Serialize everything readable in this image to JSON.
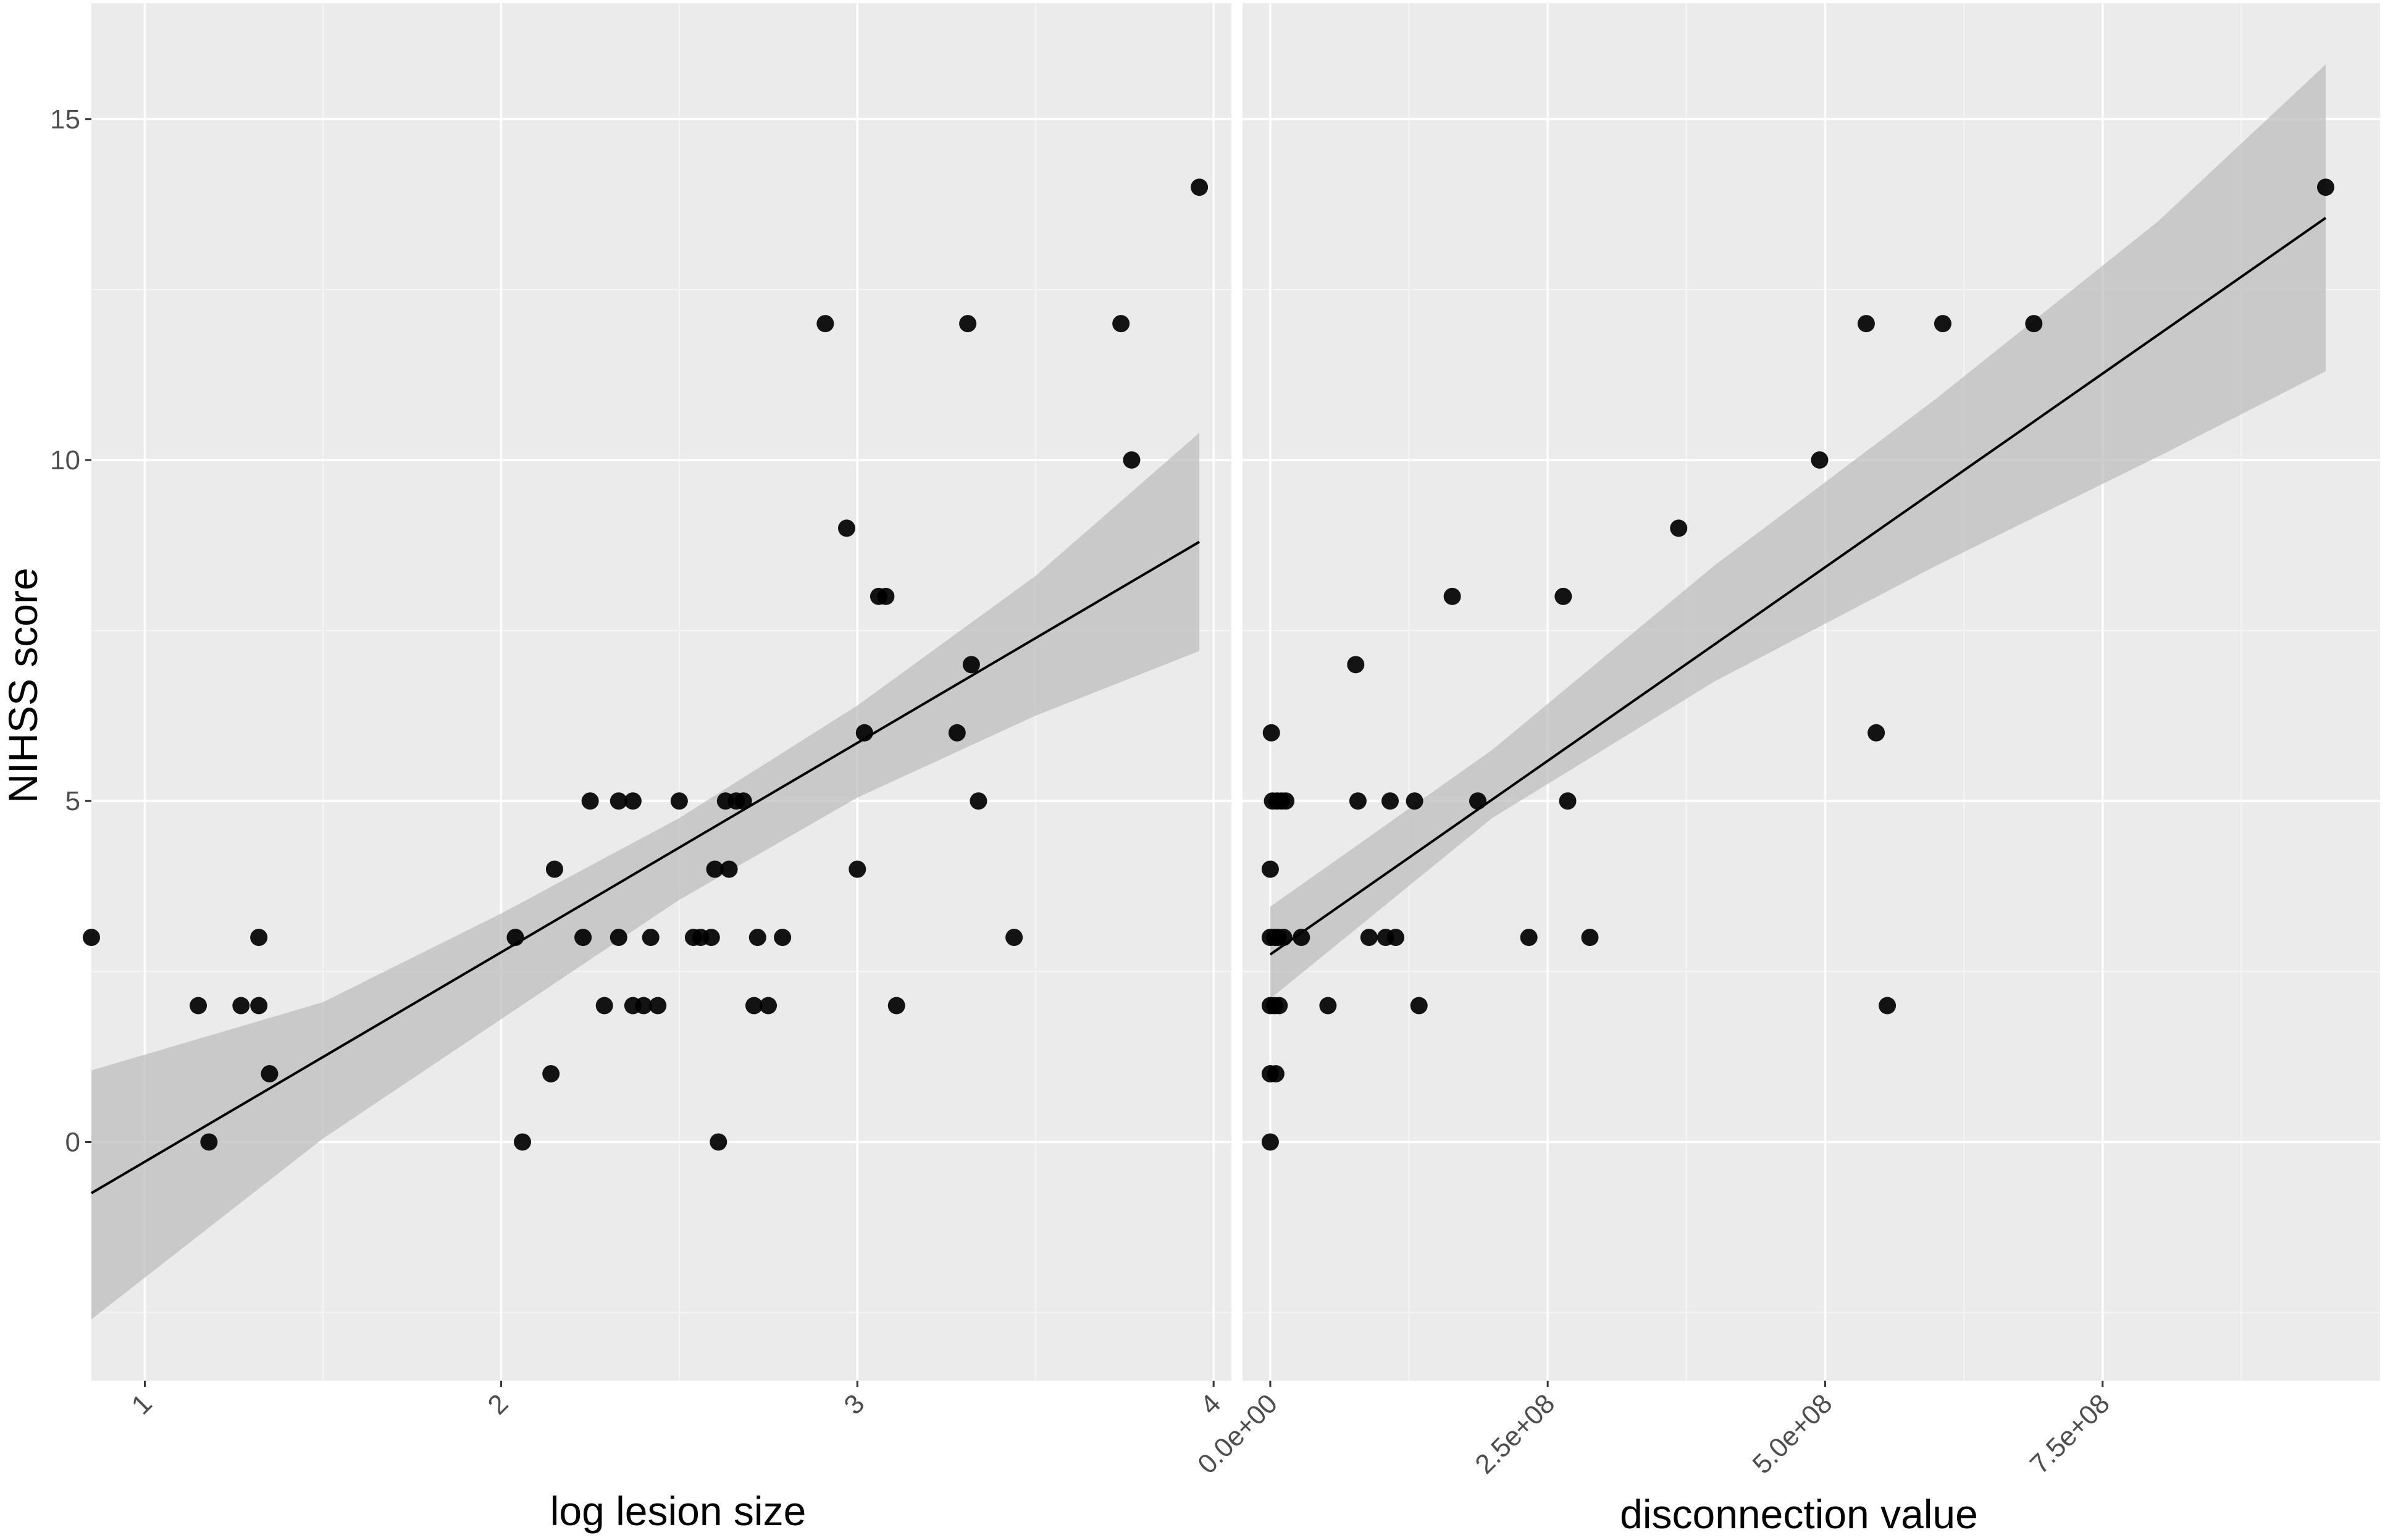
{
  "chart_data": [
    {
      "type": "scatter",
      "panel": "left",
      "xlabel": "log lesion size",
      "ylabel": "NIHSS score",
      "xlim": [
        0.85,
        4.05
      ],
      "ylim": [
        -3.5,
        16.7
      ],
      "x_ticks": [
        1,
        2,
        3,
        4
      ],
      "x_tick_labels": [
        "1",
        "2",
        "3",
        "4"
      ],
      "y_ticks": [
        0,
        5,
        10,
        15
      ],
      "y_tick_labels": [
        "0",
        "5",
        "10",
        "15"
      ],
      "grid": true,
      "points": [
        {
          "x": 0.85,
          "y": 3
        },
        {
          "x": 1.15,
          "y": 2
        },
        {
          "x": 1.18,
          "y": 0
        },
        {
          "x": 1.27,
          "y": 2
        },
        {
          "x": 1.32,
          "y": 3
        },
        {
          "x": 1.32,
          "y": 2
        },
        {
          "x": 1.35,
          "y": 1
        },
        {
          "x": 2.04,
          "y": 3
        },
        {
          "x": 2.06,
          "y": 0
        },
        {
          "x": 2.14,
          "y": 1
        },
        {
          "x": 2.15,
          "y": 4
        },
        {
          "x": 2.23,
          "y": 3
        },
        {
          "x": 2.25,
          "y": 5
        },
        {
          "x": 2.29,
          "y": 2
        },
        {
          "x": 2.33,
          "y": 3
        },
        {
          "x": 2.33,
          "y": 5
        },
        {
          "x": 2.37,
          "y": 5
        },
        {
          "x": 2.37,
          "y": 2
        },
        {
          "x": 2.4,
          "y": 2
        },
        {
          "x": 2.42,
          "y": 3
        },
        {
          "x": 2.44,
          "y": 2
        },
        {
          "x": 2.5,
          "y": 5
        },
        {
          "x": 2.54,
          "y": 3
        },
        {
          "x": 2.56,
          "y": 3
        },
        {
          "x": 2.59,
          "y": 3
        },
        {
          "x": 2.6,
          "y": 4
        },
        {
          "x": 2.61,
          "y": 0
        },
        {
          "x": 2.63,
          "y": 5
        },
        {
          "x": 2.64,
          "y": 4
        },
        {
          "x": 2.66,
          "y": 5
        },
        {
          "x": 2.68,
          "y": 5
        },
        {
          "x": 2.71,
          "y": 2
        },
        {
          "x": 2.72,
          "y": 3
        },
        {
          "x": 2.75,
          "y": 2
        },
        {
          "x": 2.79,
          "y": 3
        },
        {
          "x": 2.91,
          "y": 12
        },
        {
          "x": 2.97,
          "y": 9
        },
        {
          "x": 3.0,
          "y": 4
        },
        {
          "x": 3.02,
          "y": 6
        },
        {
          "x": 3.06,
          "y": 8
        },
        {
          "x": 3.08,
          "y": 8
        },
        {
          "x": 3.11,
          "y": 2
        },
        {
          "x": 3.28,
          "y": 6
        },
        {
          "x": 3.31,
          "y": 12
        },
        {
          "x": 3.32,
          "y": 7
        },
        {
          "x": 3.34,
          "y": 5
        },
        {
          "x": 3.44,
          "y": 3
        },
        {
          "x": 3.74,
          "y": 12
        },
        {
          "x": 3.77,
          "y": 10
        },
        {
          "x": 3.96,
          "y": 14
        }
      ],
      "fit_line": {
        "x": [
          0.85,
          3.96
        ],
        "y": [
          -0.75,
          8.8
        ]
      },
      "confidence_band": {
        "x": [
          0.85,
          1.5,
          2.0,
          2.5,
          3.0,
          3.5,
          3.96
        ],
        "lower": [
          -2.6,
          0.05,
          1.8,
          3.55,
          5.05,
          6.25,
          7.2
        ],
        "upper": [
          1.05,
          2.05,
          3.35,
          4.75,
          6.4,
          8.3,
          10.4
        ]
      }
    },
    {
      "type": "scatter",
      "panel": "right",
      "xlabel": "disconnection value",
      "xlim": [
        -25000000,
        1000000000
      ],
      "ylim": [
        -3.5,
        16.7
      ],
      "x_ticks": [
        0,
        250000000,
        500000000,
        750000000
      ],
      "x_tick_labels": [
        "0.0e+00",
        "2.5e+08",
        "5.0e+08",
        "7.5e+08"
      ],
      "grid": true,
      "points": [
        {
          "x": 0,
          "y": 0
        },
        {
          "x": 0,
          "y": 1
        },
        {
          "x": 0,
          "y": 2
        },
        {
          "x": 0,
          "y": 3
        },
        {
          "x": 0,
          "y": 4
        },
        {
          "x": 1000000,
          "y": 6
        },
        {
          "x": 2000000,
          "y": 5
        },
        {
          "x": 4000000,
          "y": 2
        },
        {
          "x": 4000000,
          "y": 3
        },
        {
          "x": 5000000,
          "y": 1
        },
        {
          "x": 6000000,
          "y": 5
        },
        {
          "x": 7000000,
          "y": 3
        },
        {
          "x": 8000000,
          "y": 2
        },
        {
          "x": 10000000,
          "y": 5
        },
        {
          "x": 12000000,
          "y": 3
        },
        {
          "x": 14000000,
          "y": 5
        },
        {
          "x": 28000000,
          "y": 3
        },
        {
          "x": 52000000,
          "y": 2
        },
        {
          "x": 77000000,
          "y": 7
        },
        {
          "x": 79000000,
          "y": 5
        },
        {
          "x": 89000000,
          "y": 3
        },
        {
          "x": 104000000,
          "y": 3
        },
        {
          "x": 108000000,
          "y": 5
        },
        {
          "x": 113000000,
          "y": 3
        },
        {
          "x": 130000000,
          "y": 5
        },
        {
          "x": 134000000,
          "y": 2
        },
        {
          "x": 164000000,
          "y": 8
        },
        {
          "x": 187000000,
          "y": 5
        },
        {
          "x": 233000000,
          "y": 3
        },
        {
          "x": 264000000,
          "y": 8
        },
        {
          "x": 268000000,
          "y": 5
        },
        {
          "x": 288000000,
          "y": 3
        },
        {
          "x": 368000000,
          "y": 9
        },
        {
          "x": 495000000,
          "y": 10
        },
        {
          "x": 537000000,
          "y": 12
        },
        {
          "x": 546000000,
          "y": 6
        },
        {
          "x": 556000000,
          "y": 2
        },
        {
          "x": 606000000,
          "y": 12
        },
        {
          "x": 688000000,
          "y": 12
        },
        {
          "x": 951000000,
          "y": 14
        }
      ],
      "fit_line": {
        "x": [
          0,
          951000000
        ],
        "y": [
          2.75,
          13.55
        ]
      },
      "confidence_band": {
        "x": [
          0,
          200000000,
          400000000,
          600000000,
          800000000,
          951000000
        ],
        "lower": [
          2.1,
          4.75,
          6.75,
          8.45,
          10.05,
          11.3
        ],
        "upper": [
          3.45,
          5.75,
          8.45,
          10.9,
          13.5,
          15.8
        ]
      }
    }
  ],
  "colors": {
    "panel_bg": "#ebebeb",
    "grid_major": "#ffffff",
    "grid_minor": "#f5f5f5",
    "points": "#000000",
    "fit_line": "#000000",
    "band": "#bdbdbd",
    "tick_text": "#4d4d4d"
  }
}
